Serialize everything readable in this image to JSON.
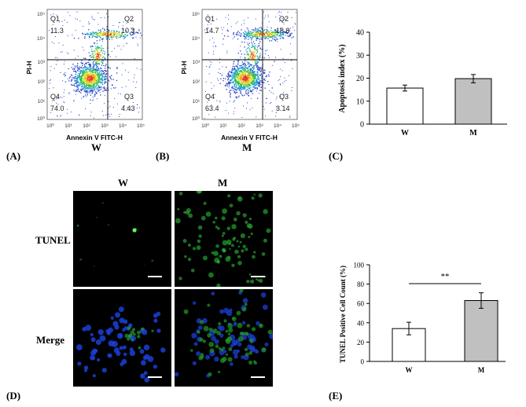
{
  "panels": {
    "a": {
      "label": "(A)",
      "sample": "W"
    },
    "b": {
      "label": "(B)",
      "sample": "M"
    },
    "c": {
      "label": "(C)"
    },
    "d": {
      "label": "(D)"
    },
    "e": {
      "label": "(E)"
    }
  },
  "flow": [
    {
      "x_axis_label": "Annexin V FITC-H",
      "y_axis_label": "PI-H",
      "quadrants": [
        {
          "name": "Q1",
          "value": "11.3"
        },
        {
          "name": "Q2",
          "value": "10.3"
        },
        {
          "name": "Q4",
          "value": "74.0"
        },
        {
          "name": "Q3",
          "value": "4.43"
        }
      ]
    },
    {
      "x_axis_label": "Annexin V FITC-H",
      "y_axis_label": "PI-H",
      "quadrants": [
        {
          "name": "Q1",
          "value": "14.7"
        },
        {
          "name": "Q2",
          "value": "18.8"
        },
        {
          "name": "Q4",
          "value": "63.4"
        },
        {
          "name": "Q3",
          "value": "3.14"
        }
      ]
    }
  ],
  "microscopy": {
    "columns": [
      "W",
      "M"
    ],
    "rows": [
      "TUNEL",
      "Merge"
    ],
    "colors": {
      "tunel": "#1f9a2a",
      "dapi": "#1a3fd6"
    }
  },
  "chart_data": [
    {
      "type": "bar",
      "categories": [
        "W",
        "M"
      ],
      "values": [
        15.7,
        19.8
      ],
      "errors": [
        1.3,
        1.8
      ],
      "ylabel": "Apoptosis index (%)",
      "ylim": [
        0,
        40
      ],
      "yticks": [
        0,
        10,
        20,
        30,
        40
      ],
      "bar_colors": [
        "#ffffff",
        "#c0c0c0"
      ]
    },
    {
      "type": "bar",
      "categories": [
        "W",
        "M"
      ],
      "values": [
        34,
        63
      ],
      "errors": [
        6.5,
        8
      ],
      "ylabel": "TUNEL Positive Cell Count (%)",
      "ylim": [
        0,
        100
      ],
      "yticks": [
        0,
        20,
        40,
        60,
        80,
        100
      ],
      "significance": "**",
      "bar_colors": [
        "#ffffff",
        "#c0c0c0"
      ]
    }
  ]
}
